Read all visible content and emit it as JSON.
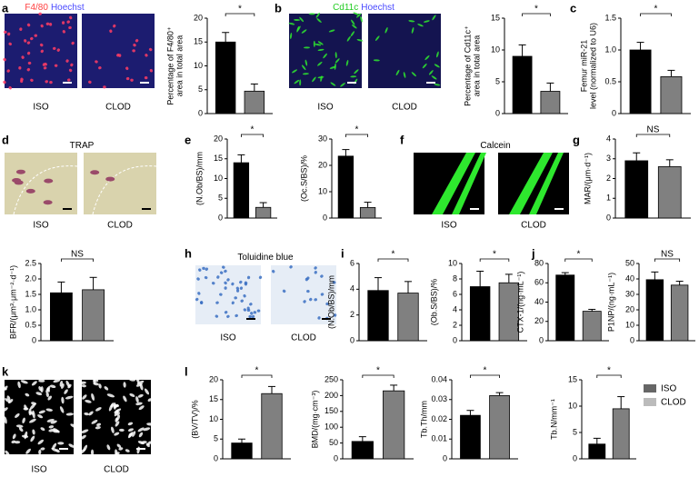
{
  "panel_letters": [
    "a",
    "b",
    "c",
    "d",
    "e",
    "f",
    "g",
    "h",
    "i",
    "j",
    "k",
    "l"
  ],
  "images": [
    {
      "title": [
        {
          "text": "F4/80",
          "color": "#ff4040"
        },
        {
          "text": "Hoechst",
          "color": "#4a4aff"
        }
      ],
      "labels": [
        "ISO",
        "CLOD"
      ]
    },
    {
      "title": [
        {
          "text": "Cd11c",
          "color": "#22cc22"
        },
        {
          "text": "Hoechst",
          "color": "#4a4aff"
        }
      ],
      "labels": [
        "ISO",
        "CLOD"
      ]
    },
    {
      "title": [
        {
          "text": "TRAP",
          "color": "#000000"
        }
      ],
      "labels": [
        "ISO",
        "CLOD"
      ]
    },
    {
      "title": [
        {
          "text": "Calcein",
          "color": "#000000"
        }
      ],
      "labels": [
        "ISO",
        "CLOD"
      ]
    },
    {
      "title": [
        {
          "text": "Toluidine blue",
          "color": "#000000"
        }
      ],
      "labels": [
        "ISO",
        "CLOD"
      ]
    },
    {
      "title": [],
      "labels": [
        "ISO",
        "CLOD"
      ]
    }
  ],
  "legend": [
    {
      "name": "ISO",
      "color": "#666666"
    },
    {
      "name": "CLOD",
      "color": "#bbbbbb"
    }
  ],
  "chart_data": [
    {
      "type": "bar",
      "ylabel": [
        "Percentage of F4/80⁺",
        "area in total area"
      ],
      "categories": [
        null,
        null
      ],
      "values": [
        15,
        4.7
      ],
      "errors": [
        2,
        1.5
      ],
      "colors": [
        "#000000",
        "#808080"
      ],
      "ylim": [
        0,
        20
      ],
      "yticks": [
        0,
        5,
        10,
        15,
        20
      ],
      "significance": "*"
    },
    {
      "type": "bar",
      "ylabel": [
        "Percentage of Cd11c⁺",
        "area in total area"
      ],
      "categories": [
        null,
        null
      ],
      "values": [
        9,
        3.5
      ],
      "errors": [
        1.8,
        1.3
      ],
      "colors": [
        "#000000",
        "#808080"
      ],
      "ylim": [
        0,
        15
      ],
      "yticks": [
        0,
        5,
        10,
        15
      ],
      "significance": "*"
    },
    {
      "type": "bar",
      "ylabel": [
        "Femur miR-21",
        "level (normalized to U6)"
      ],
      "categories": [
        null,
        null
      ],
      "values": [
        1.0,
        0.58
      ],
      "errors": [
        0.12,
        0.1
      ],
      "colors": [
        "#000000",
        "#808080"
      ],
      "ylim": [
        0,
        1.5
      ],
      "yticks": [
        0,
        0.5,
        {
          "value": 1,
          "label": "1.0"
        },
        1.5
      ],
      "significance": "*"
    },
    {
      "type": "bar",
      "ylabel": [
        "(N.Ob/BS)/mm"
      ],
      "categories": [
        null,
        null
      ],
      "values": [
        14,
        2.7
      ],
      "errors": [
        2,
        1.2
      ],
      "colors": [
        "#000000",
        "#808080"
      ],
      "ylim": [
        0,
        20
      ],
      "yticks": [
        0,
        5,
        10,
        15,
        20
      ],
      "significance": "*"
    },
    {
      "type": "bar",
      "ylabel": [
        "(Oc.S/BS)/%"
      ],
      "categories": [
        null,
        null
      ],
      "values": [
        23.5,
        4
      ],
      "errors": [
        2.5,
        2
      ],
      "colors": [
        "#000000",
        "#808080"
      ],
      "ylim": [
        0,
        30
      ],
      "yticks": [
        0,
        10,
        20,
        30
      ],
      "significance": "*"
    },
    {
      "type": "bar",
      "ylabel": [
        "MAR/(μm·d⁻¹)"
      ],
      "categories": [
        null,
        null
      ],
      "values": [
        2.9,
        2.6
      ],
      "errors": [
        0.4,
        0.35
      ],
      "colors": [
        "#000000",
        "#808080"
      ],
      "ylim": [
        0,
        4
      ],
      "yticks": [
        0,
        1,
        2,
        3,
        4
      ],
      "significance": "NS"
    },
    {
      "type": "bar",
      "ylabel": [
        "BFR/(μm³·μm⁻²·d⁻¹)"
      ],
      "categories": [
        null,
        null
      ],
      "values": [
        1.55,
        1.65
      ],
      "errors": [
        0.35,
        0.4
      ],
      "colors": [
        "#000000",
        "#808080"
      ],
      "ylim": [
        0,
        2.5
      ],
      "yticks": [
        0,
        0.5,
        {
          "value": 1,
          "label": "1.0"
        },
        1.5,
        {
          "value": 2,
          "label": "2.0"
        },
        2.5
      ],
      "significance": "NS"
    },
    {
      "type": "bar",
      "ylabel": [
        "(N.Ob/BS)/mm"
      ],
      "categories": [
        null,
        null
      ],
      "values": [
        3.9,
        3.7
      ],
      "errors": [
        1,
        0.9
      ],
      "colors": [
        "#000000",
        "#808080"
      ],
      "ylim": [
        0,
        6
      ],
      "yticks": [
        0,
        2,
        4,
        6
      ],
      "significance": "*"
    },
    {
      "type": "bar",
      "ylabel": [
        "(Ob.S/BS)/%"
      ],
      "categories": [
        null,
        null
      ],
      "values": [
        7,
        7.5
      ],
      "errors": [
        2,
        1.1
      ],
      "colors": [
        "#000000",
        "#808080"
      ],
      "ylim": [
        0,
        10
      ],
      "yticks": [
        0,
        2,
        4,
        6,
        8,
        10
      ],
      "significance": "*"
    },
    {
      "type": "bar",
      "ylabel": [
        "CTX-1/(ng·mL⁻¹)"
      ],
      "categories": [
        null,
        null
      ],
      "values": [
        68,
        30.5
      ],
      "errors": [
        2.5,
        2
      ],
      "colors": [
        "#000000",
        "#808080"
      ],
      "ylim": [
        0,
        80
      ],
      "yticks": [
        0,
        20,
        40,
        60,
        80
      ],
      "significance": "*"
    },
    {
      "type": "bar",
      "ylabel": [
        "P1NP/(ng·mL⁻¹)"
      ],
      "categories": [
        null,
        null
      ],
      "values": [
        39.5,
        36
      ],
      "errors": [
        5,
        2.5
      ],
      "colors": [
        "#000000",
        "#808080"
      ],
      "ylim": [
        0,
        50
      ],
      "yticks": [
        0,
        10,
        20,
        30,
        40,
        50
      ],
      "significance": "NS"
    },
    {
      "type": "bar",
      "ylabel": [
        "(BV/TV)/%"
      ],
      "categories": [
        null,
        null
      ],
      "values": [
        4,
        16.5
      ],
      "errors": [
        1,
        1.8
      ],
      "colors": [
        "#000000",
        "#808080"
      ],
      "ylim": [
        0,
        20
      ],
      "yticks": [
        0,
        5,
        10,
        15,
        20
      ],
      "significance": "*"
    },
    {
      "type": "bar",
      "ylabel": [
        "BMD/(mg·cm⁻³)"
      ],
      "categories": [
        null,
        null
      ],
      "values": [
        55,
        215
      ],
      "errors": [
        15,
        18
      ],
      "colors": [
        "#000000",
        "#808080"
      ],
      "ylim": [
        0,
        250
      ],
      "yticks": [
        0,
        50,
        100,
        150,
        200,
        250
      ],
      "significance": "*"
    },
    {
      "type": "bar",
      "ylabel": [
        "Tb.Th/mm"
      ],
      "categories": [
        null,
        null
      ],
      "values": [
        0.022,
        0.032
      ],
      "errors": [
        0.0025,
        0.0015
      ],
      "colors": [
        "#000000",
        "#808080"
      ],
      "ylim": [
        0,
        0.04
      ],
      "yticks": [
        0,
        0.01,
        0.02,
        0.03,
        0.04
      ],
      "significance": "*"
    },
    {
      "type": "bar",
      "ylabel": [
        "Tb.N/mm⁻¹"
      ],
      "categories": [
        null,
        null
      ],
      "values": [
        2.8,
        9.5
      ],
      "errors": [
        1.1,
        2.3
      ],
      "colors": [
        "#000000",
        "#808080"
      ],
      "ylim": [
        0,
        15
      ],
      "yticks": [
        0,
        5,
        10,
        15
      ],
      "significance": "*"
    }
  ]
}
